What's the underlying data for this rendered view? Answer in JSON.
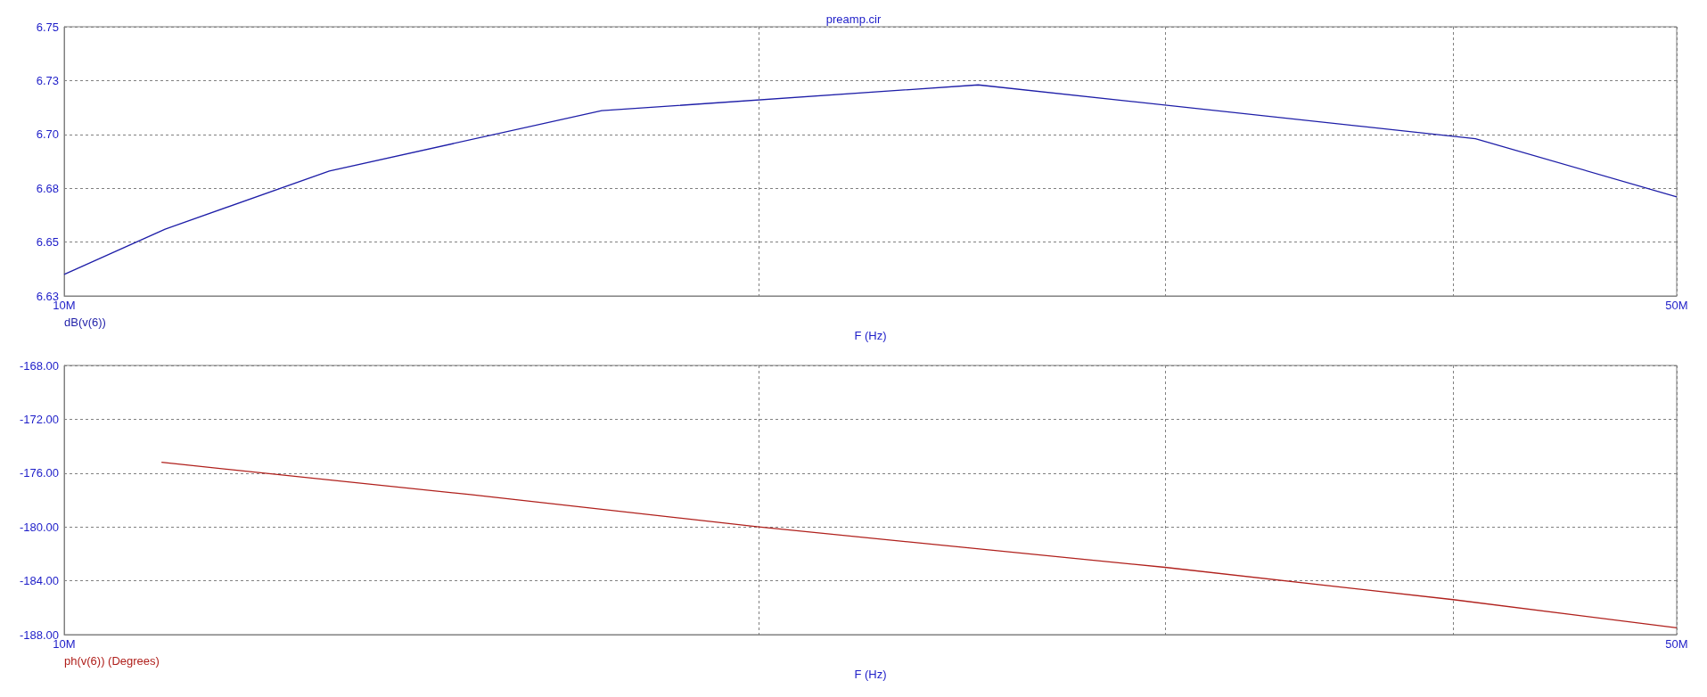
{
  "chart_data": [
    {
      "type": "line",
      "title": "preamp.cir",
      "xlabel": "F (Hz)",
      "log": "x",
      "grid": true,
      "legend": false,
      "marker": "none",
      "xlim": [
        10000000,
        50000000
      ],
      "xticks": [
        {
          "value": 10000000,
          "label": "10M"
        },
        {
          "value": 20000000,
          "label": null
        },
        {
          "value": 30000000,
          "label": null
        },
        {
          "value": 40000000,
          "label": null
        },
        {
          "value": 50000000,
          "label": "50M"
        }
      ],
      "ylim": [
        6.625,
        6.75
      ],
      "yticks": [
        {
          "value": 6.625,
          "label": "6.63"
        },
        {
          "value": 6.65,
          "label": "6.65"
        },
        {
          "value": 6.675,
          "label": "6.68"
        },
        {
          "value": 6.7,
          "label": "6.70"
        },
        {
          "value": 6.725,
          "label": "6.73"
        },
        {
          "value": 6.75,
          "label": "6.75"
        }
      ],
      "series": [
        {
          "name": "dB(v(6))",
          "color": "#1e1ea8",
          "x": [
            10000000,
            11060000,
            13030000,
            17100000,
            24900000,
            40900000,
            50000000
          ],
          "values": [
            6.635,
            6.656,
            6.683,
            6.711,
            6.723,
            6.698,
            6.671
          ]
        }
      ]
    },
    {
      "type": "line",
      "xlabel": "F (Hz)",
      "log": "x",
      "grid": true,
      "legend": false,
      "marker": "none",
      "xlim": [
        10000000,
        50000000
      ],
      "xticks": [
        {
          "value": 10000000,
          "label": "10M"
        },
        {
          "value": 20000000,
          "label": null
        },
        {
          "value": 30000000,
          "label": null
        },
        {
          "value": 40000000,
          "label": null
        },
        {
          "value": 50000000,
          "label": "50M"
        }
      ],
      "ylim": [
        -188,
        -168
      ],
      "yticks": [
        {
          "value": -188,
          "label": "-188.00"
        },
        {
          "value": -184,
          "label": "-184.00"
        },
        {
          "value": -180,
          "label": "-180.00"
        },
        {
          "value": -176,
          "label": "-176.00"
        },
        {
          "value": -172,
          "label": "-172.00"
        },
        {
          "value": -168,
          "label": "-168.00"
        }
      ],
      "series": [
        {
          "name": "ph(v(6)) (Degrees)",
          "color": "#b0201c",
          "x": [
            11020000,
            15000000,
            20000000,
            30000000,
            40000000,
            50000000
          ],
          "values": [
            -175.2,
            -177.6,
            -180.0,
            -183.0,
            -185.4,
            -187.5
          ]
        }
      ]
    }
  ]
}
